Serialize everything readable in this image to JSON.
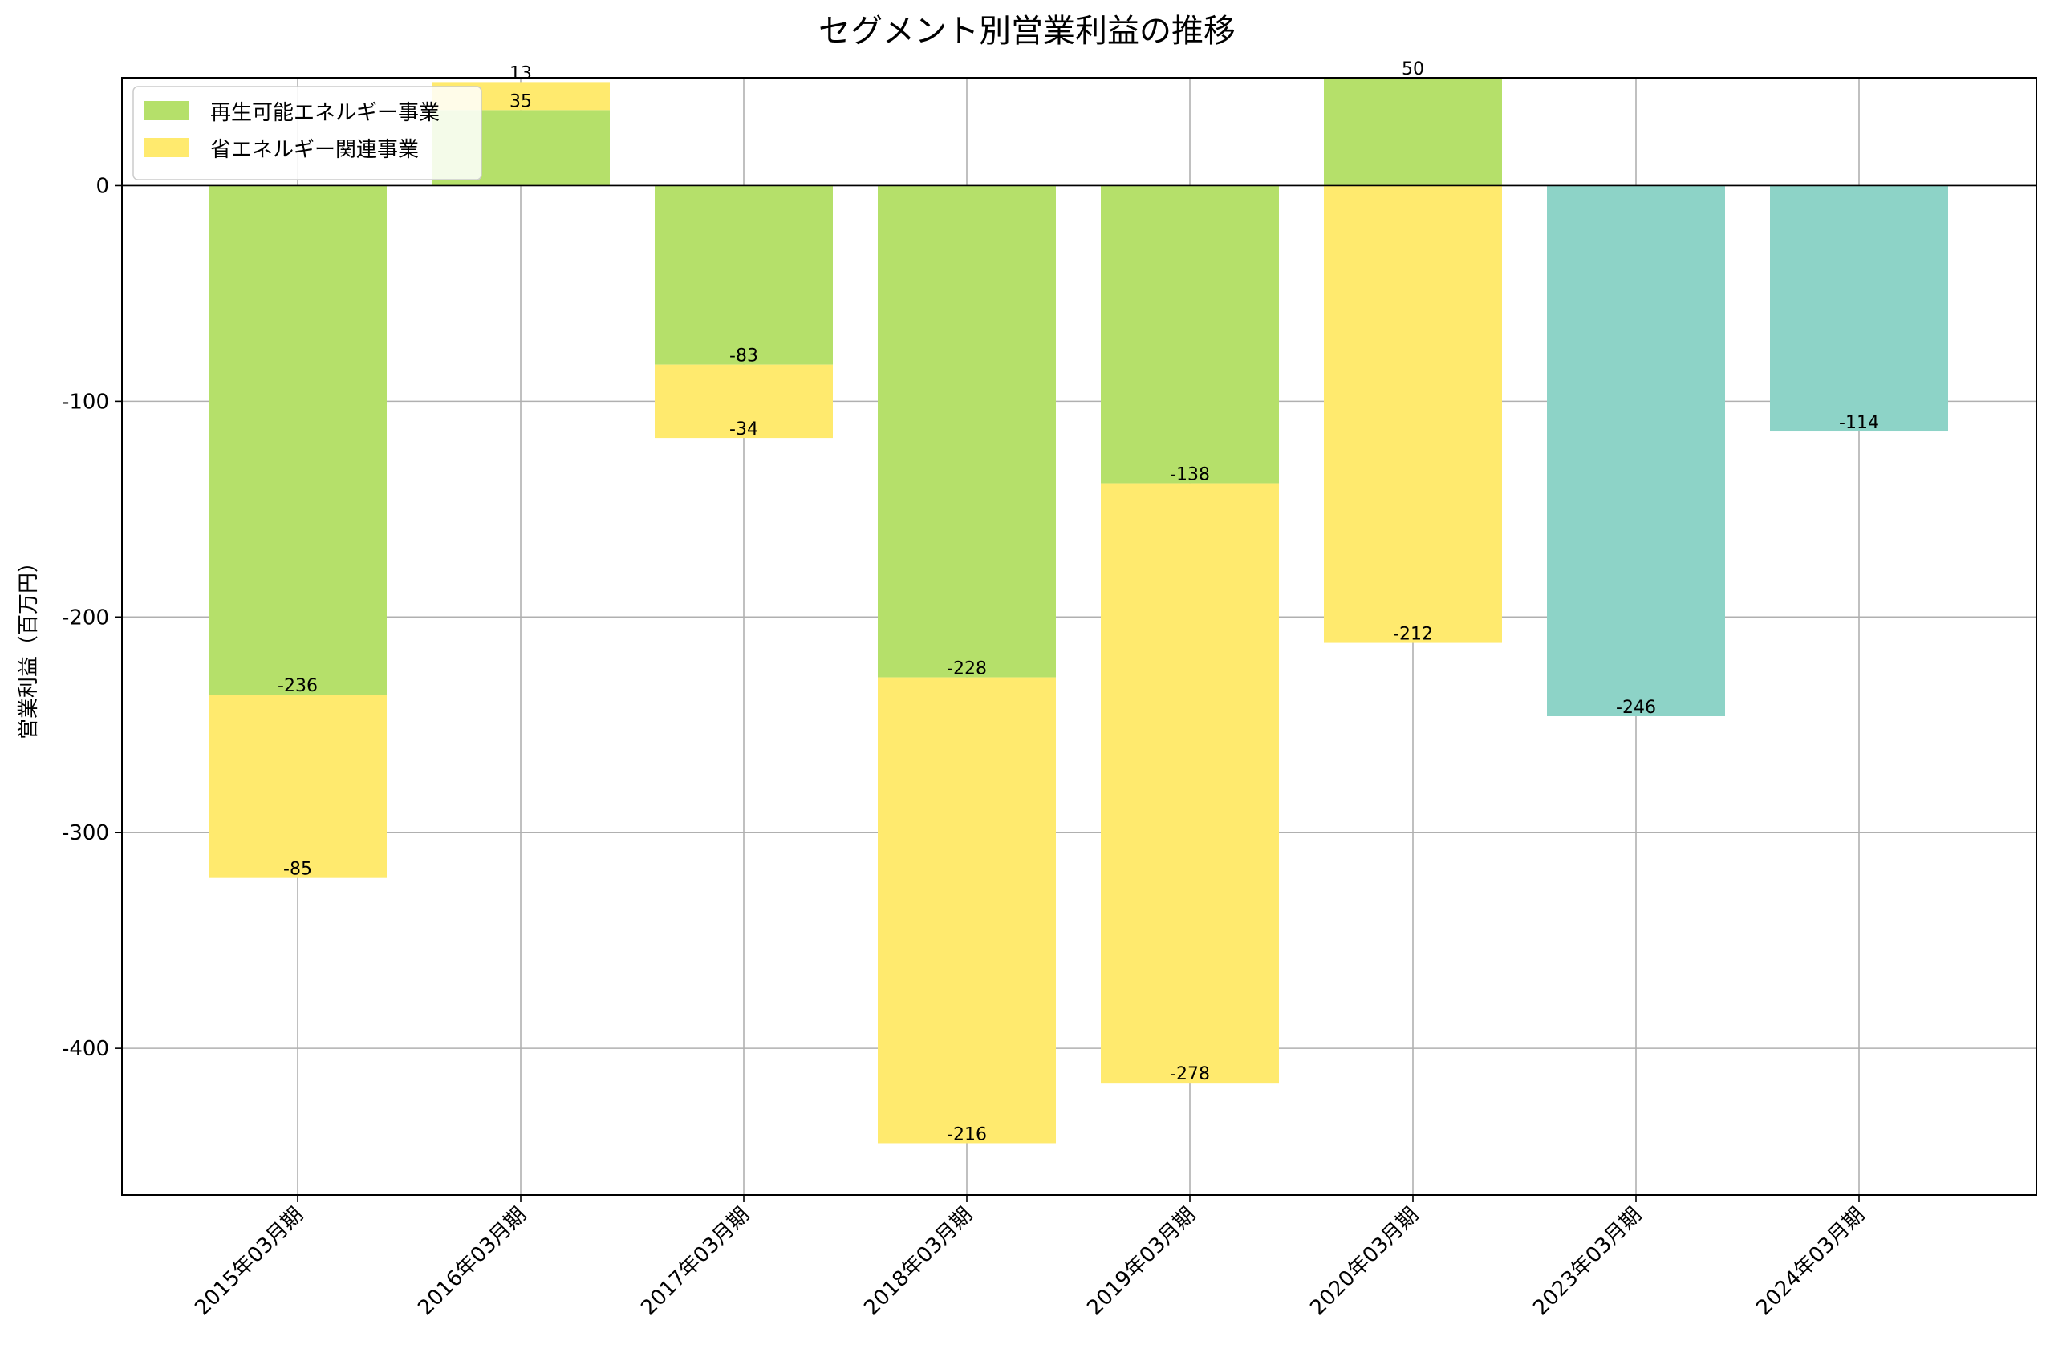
{
  "chart_data": {
    "type": "bar",
    "stacked": true,
    "title": "セグメント別営業利益の推移",
    "xlabel": "",
    "ylabel": "営業利益（百万円）",
    "ylim": [
      -468,
      50
    ],
    "yticks": [
      0,
      -100,
      -200,
      -300,
      -400
    ],
    "grid": true,
    "legend_position": "top-left",
    "categories": [
      "2015年03月期",
      "2016年03月期",
      "2017年03月期",
      "2018年03月期",
      "2019年03月期",
      "2020年03月期",
      "2023年03月期",
      "2024年03月期"
    ],
    "series": [
      {
        "name": "再生可能エネルギー事業",
        "color": "#b5e06a",
        "values": [
          -236,
          35,
          -83,
          -228,
          -138,
          50,
          null,
          null
        ]
      },
      {
        "name": "省エネルギー関連事業",
        "color": "#ffea6e",
        "values": [
          -85,
          13,
          -34,
          -216,
          -278,
          -212,
          null,
          null
        ]
      },
      {
        "name": "",
        "color": "#8dd3c7",
        "values": [
          null,
          null,
          null,
          null,
          null,
          null,
          -246,
          -114
        ]
      }
    ]
  }
}
